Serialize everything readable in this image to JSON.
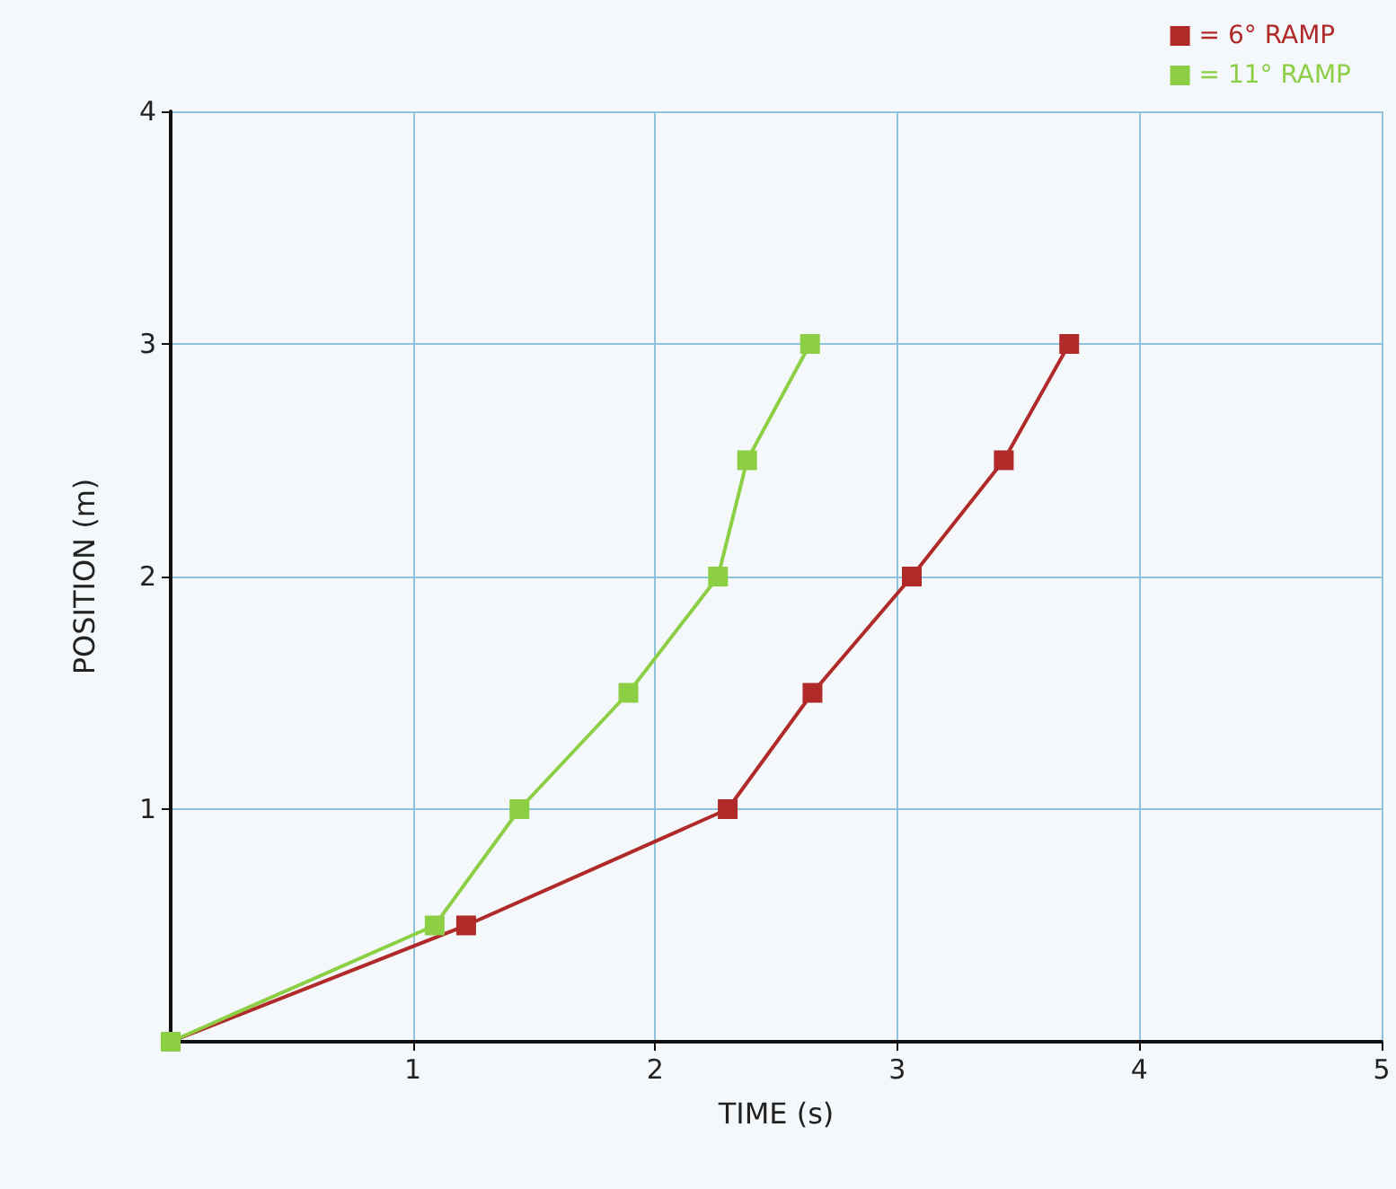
{
  "chart_data": {
    "type": "line",
    "xlabel": "TIME (s)",
    "ylabel": "POSITION (m)",
    "xlim": [
      0,
      5
    ],
    "ylim": [
      0,
      4
    ],
    "xticks": [
      1,
      2,
      3,
      4,
      5
    ],
    "yticks": [
      1,
      2,
      3,
      4
    ],
    "grid": true,
    "legend": "top right",
    "marker": "square",
    "line_style": "solid",
    "series": [
      {
        "name": "= 6° RAMP",
        "color": "#b02a2a",
        "x": [
          0,
          1.22,
          2.3,
          2.65,
          3.06,
          3.44,
          3.71
        ],
        "values": [
          0,
          0.5,
          1,
          1.5,
          2,
          2.5,
          3
        ]
      },
      {
        "name": "= 11° RAMP",
        "color": "#8ccf45",
        "x": [
          0,
          1.09,
          1.44,
          1.89,
          2.26,
          2.38,
          2.64
        ],
        "values": [
          0,
          0.5,
          1,
          1.5,
          2,
          2.5,
          3
        ]
      }
    ]
  }
}
